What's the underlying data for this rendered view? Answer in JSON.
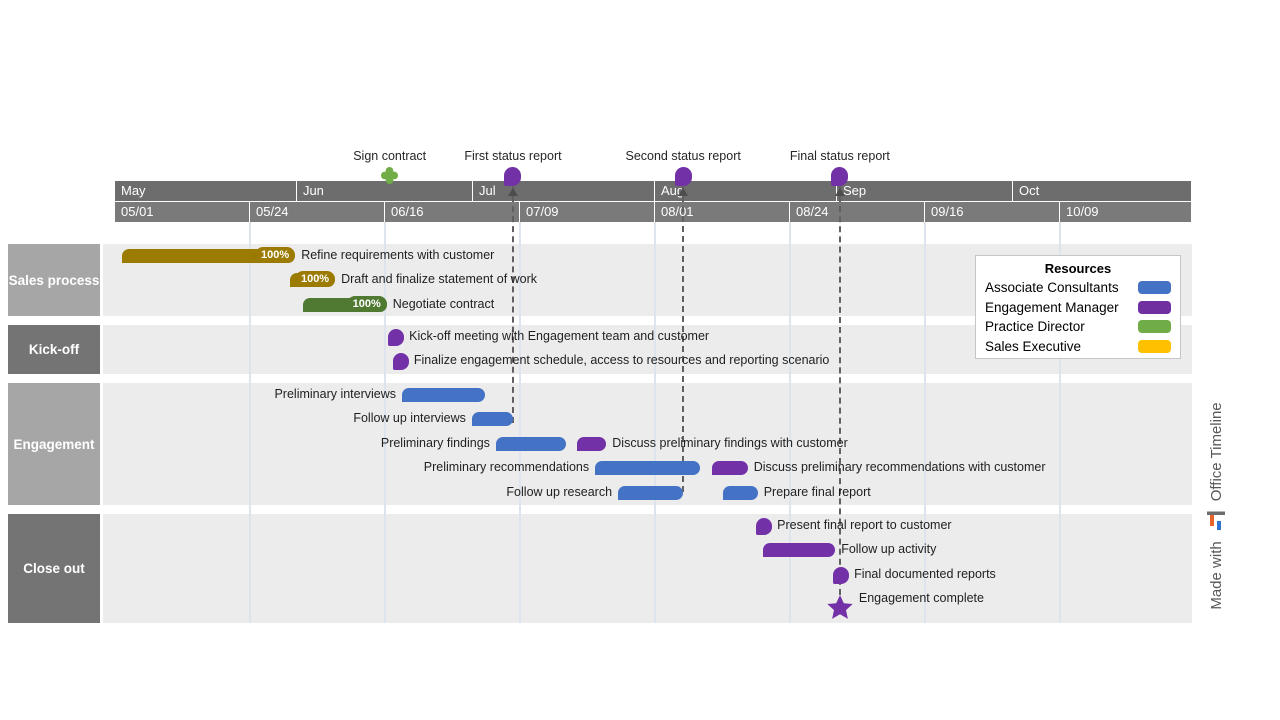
{
  "legend": {
    "title": "Resources",
    "items": [
      {
        "label": "Associate Consultants",
        "color": "#4472c4"
      },
      {
        "label": "Engagement Manager",
        "color": "#7030a0"
      },
      {
        "label": "Practice Director",
        "color": "#70ad47"
      },
      {
        "label": "Sales Executive",
        "color": "#ffc000"
      }
    ]
  },
  "branding": {
    "made_with": "Made with",
    "brand": "Office Timeline"
  },
  "palette": {
    "blue": "#4472c4",
    "purple": "#7331a8",
    "gold": "#9c7b03",
    "green": "#507a32",
    "header_month": "#6d6d6d",
    "header_date": "#7a7a7a",
    "lane_light": "#a6a6a6",
    "lane_dark": "#747474"
  },
  "chart_data": {
    "type": "gantt",
    "time_axis": {
      "unit": "days since 05/01",
      "months": [
        {
          "label": "May",
          "start": 0,
          "end": 31
        },
        {
          "label": "Jun",
          "start": 31,
          "end": 61
        },
        {
          "label": "Jul",
          "start": 61,
          "end": 92
        },
        {
          "label": "Aug",
          "start": 92,
          "end": 123
        },
        {
          "label": "Sep",
          "start": 123,
          "end": 153
        },
        {
          "label": "Oct",
          "start": 153,
          "end": 183.5
        }
      ],
      "ticks": [
        {
          "label": "05/01",
          "start": 0,
          "end": 23
        },
        {
          "label": "05/24",
          "start": 23,
          "end": 46
        },
        {
          "label": "06/16",
          "start": 46,
          "end": 69
        },
        {
          "label": "07/09",
          "start": 69,
          "end": 92
        },
        {
          "label": "08/01",
          "start": 92,
          "end": 115
        },
        {
          "label": "08/24",
          "start": 115,
          "end": 138
        },
        {
          "label": "09/16",
          "start": 138,
          "end": 161
        },
        {
          "label": "10/09",
          "start": 161,
          "end": 183.5
        }
      ]
    },
    "top_milestones": [
      {
        "label": "Sign contract",
        "day": 46.8,
        "date": "06/16",
        "shape": "flower",
        "color": "#70ad47",
        "connector": false
      },
      {
        "label": "First status report",
        "day": 67.8,
        "date": "07/07",
        "shape": "flag",
        "color": "#7331a8",
        "connector": true
      },
      {
        "label": "Second status report",
        "day": 96.8,
        "date": "08/05",
        "shape": "flag",
        "color": "#7331a8",
        "connector": true
      },
      {
        "label": "Final status report",
        "day": 123.5,
        "date": "09/01",
        "shape": "flag",
        "color": "#7331a8",
        "connector": true
      }
    ],
    "lanes": [
      {
        "name": "Sales process",
        "shade": "light"
      },
      {
        "name": "Kick-off",
        "shade": "dark"
      },
      {
        "name": "Engagement",
        "shade": "light"
      },
      {
        "name": "Close out",
        "shade": "dark"
      }
    ],
    "tasks": [
      {
        "lane": 0,
        "row": 0,
        "type": "bar",
        "start": 1.2,
        "end": 30.7,
        "dates": "05/02-05/31",
        "color": "gold",
        "label": "Refine requirements with customer",
        "side": "right",
        "pct": "100%"
      },
      {
        "lane": 0,
        "row": 1,
        "type": "bar",
        "start": 29.8,
        "end": 37.5,
        "dates": "05/30-06/07",
        "color": "gold",
        "label": "Draft and finalize statement of work",
        "side": "right",
        "pct": "100%"
      },
      {
        "lane": 0,
        "row": 2,
        "type": "bar",
        "start": 32.0,
        "end": 46.3,
        "dates": "06/02-06/16",
        "color": "green",
        "label": "Negotiate contract",
        "side": "right",
        "pct": "100%"
      },
      {
        "lane": 1,
        "row": 0,
        "type": "milestone",
        "start": 47.9,
        "dates": "06/17",
        "color": "purple",
        "label": "Kick-off meeting with Engagement team and customer",
        "side": "right"
      },
      {
        "lane": 1,
        "row": 1,
        "type": "milestone",
        "start": 48.7,
        "dates": "06/18",
        "color": "purple",
        "label": "Finalize engagement schedule, access to resources and reporting scenario",
        "side": "right"
      },
      {
        "lane": 2,
        "row": 0,
        "type": "bar",
        "start": 48.9,
        "end": 63.0,
        "dates": "06/19-07/03",
        "color": "blue",
        "label": "Preliminary interviews",
        "side": "left"
      },
      {
        "lane": 2,
        "row": 1,
        "type": "bar",
        "start": 60.8,
        "end": 67.8,
        "dates": "07/01-07/07",
        "color": "blue",
        "label": "Follow up interviews",
        "side": "left"
      },
      {
        "lane": 2,
        "row": 2,
        "type": "bar",
        "start": 64.9,
        "end": 76.8,
        "dates": "07/05-07/16",
        "color": "blue",
        "label": "Preliminary findings",
        "side": "left"
      },
      {
        "lane": 2,
        "row": 2,
        "type": "bar",
        "start": 78.7,
        "end": 83.7,
        "dates": "07/18-07/23",
        "color": "purple",
        "label": "Discuss preliminary findings with customer",
        "side": "right"
      },
      {
        "lane": 2,
        "row": 3,
        "type": "bar",
        "start": 81.8,
        "end": 99.7,
        "dates": "07/21-08/08",
        "color": "blue",
        "label": "Preliminary recommendations",
        "side": "left"
      },
      {
        "lane": 2,
        "row": 3,
        "type": "bar",
        "start": 101.7,
        "end": 107.8,
        "dates": "08/10-08/16",
        "color": "purple",
        "label": "Discuss preliminary recommendations with customer",
        "side": "right"
      },
      {
        "lane": 2,
        "row": 4,
        "type": "bar",
        "start": 85.7,
        "end": 96.8,
        "dates": "07/25-08/05",
        "color": "blue",
        "label": "Follow up research",
        "side": "left"
      },
      {
        "lane": 2,
        "row": 4,
        "type": "bar",
        "start": 103.6,
        "end": 109.5,
        "dates": "08/12-08/18",
        "color": "blue",
        "label": "Prepare final report",
        "side": "right"
      },
      {
        "lane": 3,
        "row": 0,
        "type": "milestone",
        "start": 110.6,
        "dates": "08/19",
        "color": "purple",
        "label": "Present final report to customer",
        "side": "right"
      },
      {
        "lane": 3,
        "row": 1,
        "type": "bar",
        "start": 110.4,
        "end": 122.7,
        "dates": "08/19-08/31",
        "color": "purple",
        "label": "Follow up activity",
        "side": "right"
      },
      {
        "lane": 3,
        "row": 2,
        "type": "milestone",
        "start": 123.7,
        "dates": "09/01",
        "color": "purple",
        "label": "Final documented reports",
        "side": "right"
      },
      {
        "lane": 3,
        "row": 3,
        "type": "star",
        "start": 123.5,
        "dates": "09/01",
        "color": "purple",
        "label": "Engagement complete",
        "side": "right"
      }
    ]
  }
}
